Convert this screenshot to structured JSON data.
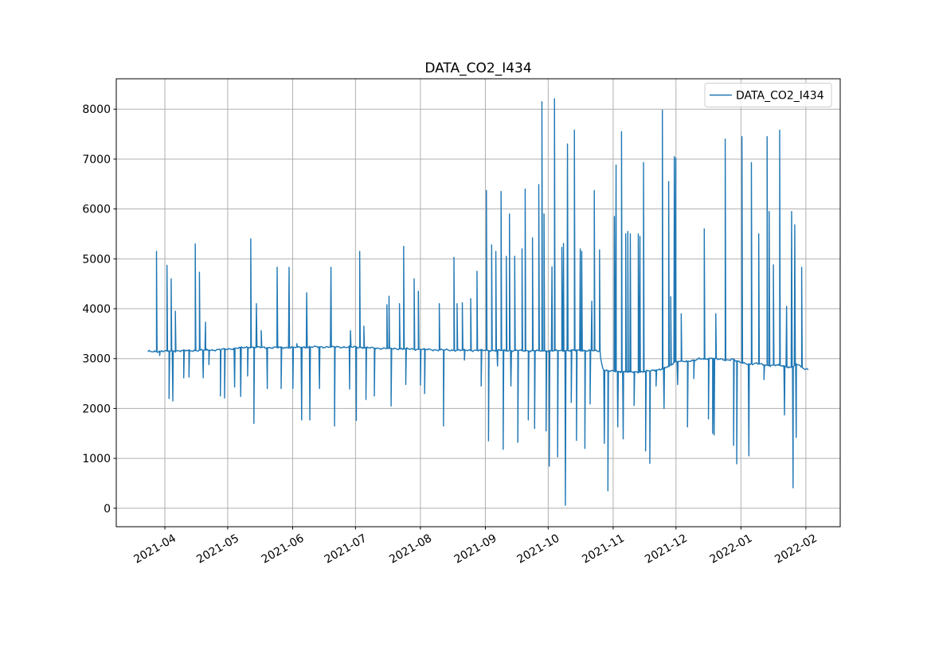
{
  "figure": {
    "title": "DATA_CO2_I434"
  },
  "legend": {
    "label": "DATA_CO2_I434"
  },
  "chart_data": {
    "type": "line",
    "title": "DATA_CO2_I434",
    "series_name": "DATA_CO2_I434",
    "legend_position": "upper right",
    "grid": true,
    "line_color": "#1f77b4",
    "grid_color": "#b0b0b0",
    "spine_color": "#000000",
    "x_epoch": "2021-04-01",
    "x_tick_labels": [
      "2021-04",
      "2021-05",
      "2021-06",
      "2021-07",
      "2021-08",
      "2021-09",
      "2021-10",
      "2021-11",
      "2021-12",
      "2022-01",
      "2022-02"
    ],
    "x_tick_days": [
      0,
      30,
      61,
      91,
      122,
      153,
      183,
      214,
      244,
      275,
      306
    ],
    "xlim_days": [
      -23.2,
      322.4
    ],
    "y_ticks": [
      0,
      1000,
      2000,
      3000,
      4000,
      5000,
      6000,
      7000,
      8000
    ],
    "ylim": [
      -370,
      8610
    ],
    "baseline": [
      [
        -8,
        3140
      ],
      [
        0,
        3150
      ],
      [
        10,
        3160
      ],
      [
        25,
        3175
      ],
      [
        32,
        3200
      ],
      [
        40,
        3230
      ],
      [
        50,
        3220
      ],
      [
        61,
        3225
      ],
      [
        75,
        3235
      ],
      [
        91,
        3230
      ],
      [
        100,
        3210
      ],
      [
        110,
        3200
      ],
      [
        122,
        3185
      ],
      [
        135,
        3170
      ],
      [
        153,
        3165
      ],
      [
        170,
        3160
      ],
      [
        183,
        3155
      ],
      [
        195,
        3165
      ],
      [
        205,
        3160
      ],
      [
        207.5,
        3150
      ],
      [
        208.5,
        2900
      ],
      [
        209.5,
        2770
      ],
      [
        212,
        2750
      ],
      [
        216,
        2745
      ],
      [
        222,
        2730
      ],
      [
        228,
        2735
      ],
      [
        233,
        2760
      ],
      [
        238,
        2800
      ],
      [
        241,
        2850
      ],
      [
        243.5,
        2940
      ],
      [
        246,
        2950
      ],
      [
        249,
        2935
      ],
      [
        252,
        2965
      ],
      [
        255,
        3000
      ],
      [
        258,
        2985
      ],
      [
        261,
        3010
      ],
      [
        264,
        2995
      ],
      [
        268,
        2960
      ],
      [
        271,
        3000
      ],
      [
        274,
        2930
      ],
      [
        276,
        2905
      ],
      [
        279,
        2890
      ],
      [
        282,
        2905
      ],
      [
        285,
        2880
      ],
      [
        288,
        2865
      ],
      [
        291,
        2870
      ],
      [
        294,
        2860
      ],
      [
        297,
        2840
      ],
      [
        299,
        2820
      ],
      [
        301,
        2870
      ],
      [
        302.5,
        2880
      ],
      [
        304,
        2830
      ],
      [
        305.5,
        2800
      ],
      [
        307,
        2790
      ]
    ],
    "spikes": [
      [
        -4,
        5150
      ],
      [
        -2.5,
        3060
      ],
      [
        1,
        4870
      ],
      [
        2,
        2200
      ],
      [
        3,
        4600
      ],
      [
        3.8,
        2150
      ],
      [
        5,
        3950
      ],
      [
        9,
        2615
      ],
      [
        11.5,
        2630
      ],
      [
        14.5,
        5300
      ],
      [
        16.5,
        4730
      ],
      [
        18.3,
        2615
      ],
      [
        19.4,
        3730
      ],
      [
        21,
        2880
      ],
      [
        26.5,
        2250
      ],
      [
        28.5,
        2210
      ],
      [
        33.3,
        2430
      ],
      [
        36.2,
        2240
      ],
      [
        39.5,
        2650
      ],
      [
        41,
        5400
      ],
      [
        42.5,
        1700
      ],
      [
        43.7,
        4100
      ],
      [
        46,
        3560
      ],
      [
        48.9,
        2400
      ],
      [
        53.6,
        4830
      ],
      [
        55.5,
        2400
      ],
      [
        59.3,
        4830
      ],
      [
        61.1,
        2400
      ],
      [
        63,
        3300
      ],
      [
        65.3,
        1770
      ],
      [
        67.7,
        4320
      ],
      [
        69.2,
        1770
      ],
      [
        73.8,
        2400
      ],
      [
        79.3,
        4830
      ],
      [
        81,
        1650
      ],
      [
        88.2,
        2390
      ],
      [
        88.6,
        3560
      ],
      [
        91.4,
        1760
      ],
      [
        93,
        5150
      ],
      [
        95,
        3650
      ],
      [
        96,
        2180
      ],
      [
        100,
        2250
      ],
      [
        106,
        4080
      ],
      [
        107,
        4250
      ],
      [
        108,
        2050
      ],
      [
        112,
        4100
      ],
      [
        114,
        5250
      ],
      [
        115,
        2480
      ],
      [
        119,
        4600
      ],
      [
        121,
        4350
      ],
      [
        122,
        2470
      ],
      [
        124,
        2300
      ],
      [
        131,
        4100
      ],
      [
        133,
        1650
      ],
      [
        138,
        5030
      ],
      [
        139.5,
        4100
      ],
      [
        142,
        4120
      ],
      [
        143,
        2970
      ],
      [
        146,
        4200
      ],
      [
        149,
        4750
      ],
      [
        151,
        2450
      ],
      [
        153.5,
        6370
      ],
      [
        154.5,
        1350
      ],
      [
        156,
        5280
      ],
      [
        158,
        5150
      ],
      [
        158.8,
        2850
      ],
      [
        160.5,
        6350
      ],
      [
        161.5,
        1180
      ],
      [
        163,
        5050
      ],
      [
        164.5,
        5900
      ],
      [
        165.2,
        2450
      ],
      [
        167,
        5050
      ],
      [
        168.5,
        1320
      ],
      [
        170.5,
        5200
      ],
      [
        172,
        6400
      ],
      [
        173.5,
        1770
      ],
      [
        175.5,
        5420
      ],
      [
        176.5,
        1600
      ],
      [
        178.5,
        6490
      ],
      [
        180,
        8150
      ],
      [
        181,
        5900
      ],
      [
        182,
        1550
      ],
      [
        183.5,
        845
      ],
      [
        184.8,
        4840
      ],
      [
        186,
        8210
      ],
      [
        187.5,
        1030
      ],
      [
        189.5,
        5230
      ],
      [
        190.3,
        5310
      ],
      [
        191.2,
        60
      ],
      [
        192.2,
        7300
      ],
      [
        194,
        2120
      ],
      [
        195.5,
        7580
      ],
      [
        196.5,
        1360
      ],
      [
        198.3,
        5200
      ],
      [
        199,
        5150
      ],
      [
        200.5,
        1200
      ],
      [
        203,
        2090
      ],
      [
        203.8,
        4150
      ],
      [
        205,
        6370
      ],
      [
        207.5,
        5180
      ],
      [
        209.8,
        1300
      ],
      [
        211.5,
        350
      ],
      [
        214.6,
        5850
      ],
      [
        215.4,
        6880
      ],
      [
        216.2,
        1630
      ],
      [
        218,
        7550
      ],
      [
        218.8,
        1390
      ],
      [
        220,
        5500
      ],
      [
        221,
        5550
      ],
      [
        222.2,
        5500
      ],
      [
        224,
        2060
      ],
      [
        226,
        5500
      ],
      [
        226.8,
        5450
      ],
      [
        228.5,
        6930
      ],
      [
        229.5,
        1150
      ],
      [
        231.5,
        900
      ],
      [
        234.5,
        2450
      ],
      [
        237.5,
        7980
      ],
      [
        238.3,
        2000
      ],
      [
        240.5,
        6550
      ],
      [
        241.5,
        4240
      ],
      [
        243.2,
        7050
      ],
      [
        243.9,
        7020
      ],
      [
        244.8,
        2480
      ],
      [
        246.5,
        3900
      ],
      [
        249.5,
        1630
      ],
      [
        252.5,
        2600
      ],
      [
        257.5,
        5600
      ],
      [
        259.5,
        1790
      ],
      [
        261.5,
        1500
      ],
      [
        262.2,
        1470
      ],
      [
        263,
        3900
      ],
      [
        267.5,
        7400
      ],
      [
        271.5,
        1260
      ],
      [
        273,
        890
      ],
      [
        275.5,
        7450
      ],
      [
        278.8,
        1050
      ],
      [
        280,
        6930
      ],
      [
        283.5,
        5500
      ],
      [
        286,
        2580
      ],
      [
        287.5,
        7450
      ],
      [
        288.5,
        5950
      ],
      [
        290.5,
        4880
      ],
      [
        293.5,
        7580
      ],
      [
        295.8,
        1870
      ],
      [
        296.8,
        4050
      ],
      [
        299.2,
        5950
      ],
      [
        299.9,
        410
      ],
      [
        300.7,
        5680
      ],
      [
        301.4,
        1420
      ],
      [
        304,
        4830
      ]
    ]
  }
}
